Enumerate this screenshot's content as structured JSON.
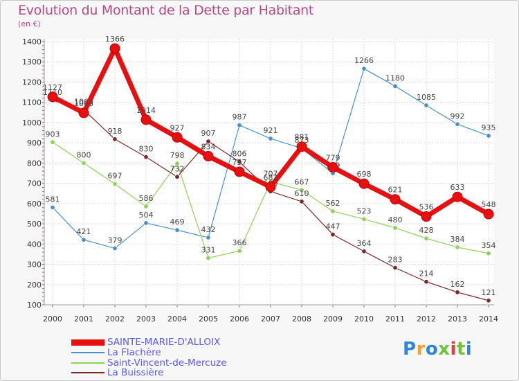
{
  "header": {
    "title": "Evolution du Montant de la Dette par Habitant",
    "unit": "(en €)"
  },
  "logo": {
    "text": "Proxiti",
    "colors": [
      "#2f86d9",
      "#f0a42b",
      "#2f86d9",
      "#6fc23a",
      "#e23f3f",
      "#6fc23a",
      "#2f86d9"
    ]
  },
  "chart_data": {
    "type": "line",
    "title": "Evolution du Montant de la Dette par Habitant",
    "ylabel": "(en €)",
    "xlabel": "",
    "x": [
      "2000",
      "2001",
      "2002",
      "2003",
      "2004",
      "2005",
      "2006",
      "2007",
      "2008",
      "2009",
      "2010",
      "2011",
      "2012",
      "2013",
      "2014"
    ],
    "ylim": [
      100,
      1400
    ],
    "yticks": [
      100,
      200,
      300,
      400,
      500,
      600,
      700,
      800,
      900,
      1000,
      1100,
      1200,
      1300,
      1400
    ],
    "grid": true,
    "legend_position": "bottom-left",
    "series": [
      {
        "name": "SAINTE-MARIE-D'ALLOIX",
        "color": "#e61010",
        "values": [
          1127,
          1048,
          1366,
          1014,
          927,
          834,
          757,
          682,
          881,
          779,
          698,
          621,
          536,
          633,
          548
        ]
      },
      {
        "name": "La Flachère",
        "color": "#4a8fcc",
        "values": [
          581,
          421,
          379,
          504,
          469,
          432,
          987,
          921,
          873,
          749,
          1266,
          1180,
          1085,
          992,
          935
        ]
      },
      {
        "name": "Saint-Vincent-de-Mercuze",
        "color": "#8ed05a",
        "values": [
          903,
          800,
          697,
          586,
          798,
          331,
          366,
          707,
          667,
          562,
          523,
          480,
          428,
          384,
          354
        ]
      },
      {
        "name": "La Buissière",
        "color": "#7a2a2a",
        "values": [
          1110,
          1063,
          918,
          830,
          732,
          907,
          806,
          660,
          610,
          447,
          364,
          283,
          214,
          162,
          121
        ]
      }
    ]
  }
}
